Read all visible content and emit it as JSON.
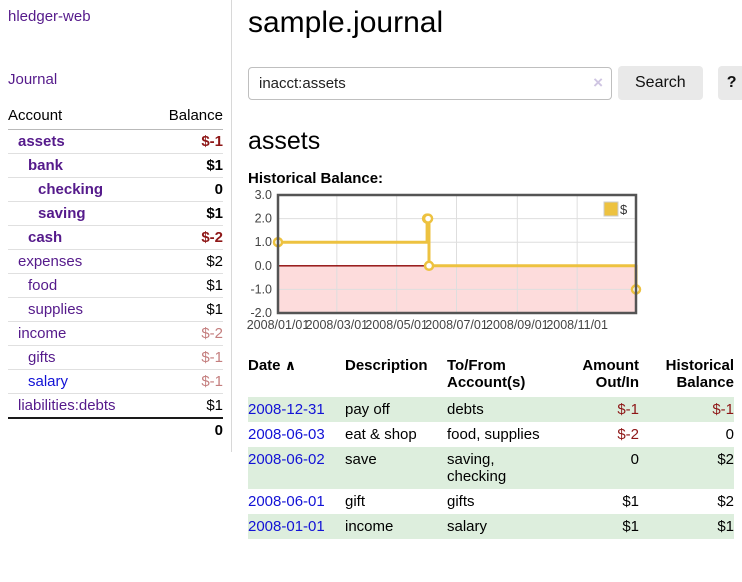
{
  "sidebar": {
    "app_title": "hledger-web",
    "journal_label": "Journal",
    "accounts_table": {
      "headers": {
        "account": "Account",
        "balance": "Balance"
      },
      "rows": [
        {
          "name": "assets",
          "balance": "$-1"
        },
        {
          "name": "bank",
          "balance": "$1"
        },
        {
          "name": "checking",
          "balance": "0"
        },
        {
          "name": "saving",
          "balance": "$1"
        },
        {
          "name": "cash",
          "balance": "$-2"
        },
        {
          "name": "expenses",
          "balance": "$2"
        },
        {
          "name": "food",
          "balance": "$1"
        },
        {
          "name": "supplies",
          "balance": "$1"
        },
        {
          "name": "income",
          "balance": "$-2"
        },
        {
          "name": "gifts",
          "balance": "$-1"
        },
        {
          "name": "salary",
          "balance": "$-1"
        },
        {
          "name": "liabilities:debts",
          "balance": "$1"
        }
      ],
      "total": "0"
    }
  },
  "main": {
    "title": "sample.journal",
    "search": {
      "value": "inacct:assets",
      "clear_icon": "×",
      "search_label": "Search",
      "help_label": "?"
    },
    "account_heading": "assets",
    "chart_label": "Historical Balance:"
  },
  "chart_data": {
    "type": "line",
    "title": "Historical Balance:",
    "series": [
      {
        "name": "$",
        "color": "#EDC240",
        "steps": true,
        "markers": true,
        "points": [
          [
            "2008-01-01",
            1
          ],
          [
            "2008-06-01",
            2
          ],
          [
            "2008-06-02",
            2
          ],
          [
            "2008-06-03",
            0
          ],
          [
            "2008-12-31",
            -1
          ]
        ]
      }
    ],
    "x_range": [
      "2008-01-01",
      "2008-12-31"
    ],
    "x_ticks": [
      "2008/01/01",
      "2008/03/01",
      "2008/05/01",
      "2008/07/01",
      "2008/09/01",
      "2008/11/01"
    ],
    "y_ticks": [
      3.0,
      2.0,
      1.0,
      0.0,
      -1.0,
      -2.0
    ],
    "ylim": [
      -2,
      3
    ],
    "grid": true,
    "legend_position": "top-right",
    "colors": {
      "negative_region": "#fddcdc",
      "zero_line": "#8b0000",
      "gridline": "#dedede",
      "frame": "#545454",
      "tick_label": "#444444"
    }
  },
  "transactions": {
    "headers": {
      "date": "Date",
      "sort_icon": "∧",
      "description": "Description",
      "accounts": "To/From Account(s)",
      "amount": "Amount Out/In",
      "balance": "Historical Balance"
    },
    "rows": [
      {
        "date": "2008-12-31",
        "description": "pay off",
        "accounts": "debts",
        "amount": "$-1",
        "balance": "$-1"
      },
      {
        "date": "2008-06-03",
        "description": "eat & shop",
        "accounts": "food, supplies",
        "amount": "$-2",
        "balance": "0"
      },
      {
        "date": "2008-06-02",
        "description": "save",
        "accounts": "saving, checking",
        "amount": "0",
        "balance": "$2"
      },
      {
        "date": "2008-06-01",
        "description": "gift",
        "accounts": "gifts",
        "amount": "$1",
        "balance": "$2"
      },
      {
        "date": "2008-01-01",
        "description": "income",
        "accounts": "salary",
        "amount": "$1",
        "balance": "$1"
      }
    ]
  }
}
